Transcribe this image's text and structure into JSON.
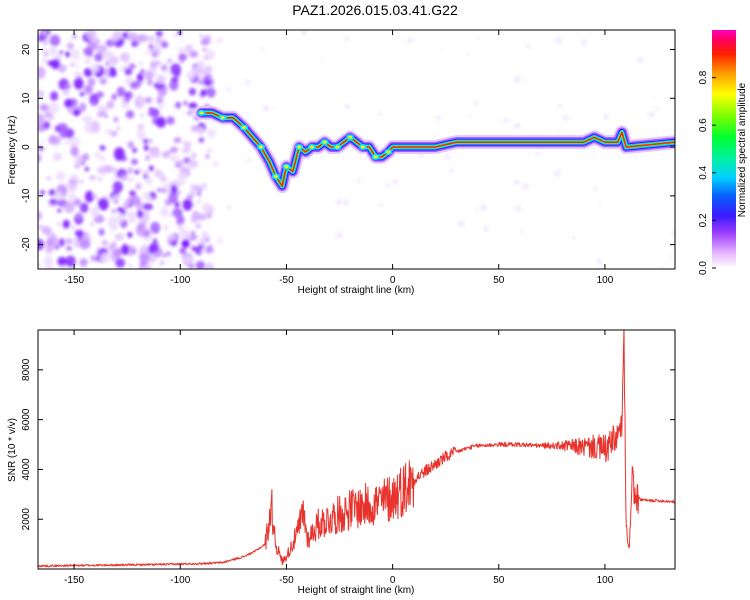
{
  "title": "PAZ1.2026.015.03.41.G22",
  "colors": {
    "frame": "#000000",
    "snr_line": "#e8322c"
  },
  "chart_data": [
    {
      "type": "heatmap",
      "name": "spectrogram",
      "title": "PAZ1.2026.015.03.41.G22",
      "xlabel": "Height of straight line (km)",
      "ylabel": "Frequency (Hz)",
      "xlim": [
        -167,
        133
      ],
      "ylim": [
        -25,
        24
      ],
      "xticks": [
        -150,
        -100,
        -50,
        0,
        50,
        100
      ],
      "yticks": [
        -20,
        -10,
        0,
        10,
        20
      ],
      "ridge": {
        "x": [
          -90,
          -85,
          -80,
          -75,
          -70,
          -66,
          -62,
          -58,
          -55,
          -52,
          -50,
          -47,
          -44,
          -41,
          -38,
          -35,
          -32,
          -29,
          -26,
          -23,
          -20,
          -17,
          -14,
          -11,
          -8,
          -5,
          -2,
          0,
          10,
          20,
          30,
          50,
          75,
          80,
          85,
          90,
          95,
          100,
          103,
          106,
          108,
          110,
          133
        ],
        "freq": [
          7,
          7,
          6,
          6,
          4,
          2,
          0,
          -3,
          -6,
          -8,
          -4,
          -5,
          0,
          -1,
          0,
          0,
          1,
          0,
          0,
          1,
          2,
          1,
          0,
          0,
          -2,
          -2,
          -1,
          0,
          0,
          0,
          1,
          1,
          1,
          1,
          1,
          1,
          2,
          1,
          1,
          1,
          3,
          0,
          1
        ]
      },
      "colorbar": {
        "label": "Normalized spectral amplitude",
        "range": [
          0,
          1
        ],
        "ticks": [
          "0.0",
          "0.2",
          "0.4",
          "0.6",
          "0.8"
        ]
      }
    },
    {
      "type": "line",
      "name": "snr",
      "xlabel": "Height of straight line (km)",
      "ylabel": "SNR (10 * v/v)",
      "xlim": [
        -167,
        133
      ],
      "ylim": [
        0,
        9600
      ],
      "xticks": [
        -150,
        -100,
        -50,
        0,
        50,
        100
      ],
      "yticks": [
        2000,
        4000,
        6000,
        8000
      ],
      "series": [
        {
          "name": "SNR",
          "x": [
            -167,
            -150,
            -130,
            -110,
            -100,
            -90,
            -80,
            -75,
            -70,
            -65,
            -60,
            -57,
            -55,
            -52,
            -50,
            -45,
            -42,
            -40,
            -35,
            -30,
            -25,
            -20,
            -15,
            -10,
            -5,
            0,
            5,
            10,
            15,
            20,
            25,
            30,
            35,
            40,
            50,
            60,
            70,
            80,
            90,
            95,
            100,
            103,
            106,
            108,
            109,
            110,
            111,
            112,
            113,
            114,
            116,
            120,
            125,
            133
          ],
          "y": [
            120,
            140,
            160,
            180,
            200,
            220,
            260,
            380,
            500,
            700,
            1000,
            2500,
            1000,
            300,
            500,
            1400,
            2300,
            1200,
            1800,
            2000,
            2200,
            2400,
            2500,
            2600,
            2700,
            2900,
            3200,
            3600,
            3900,
            4200,
            4500,
            4700,
            4850,
            4950,
            5000,
            5000,
            4950,
            4950,
            4900,
            4900,
            4800,
            5000,
            5300,
            5800,
            9200,
            1500,
            400,
            2200,
            4000,
            2800,
            2800,
            2750,
            2750,
            2700
          ]
        }
      ]
    }
  ]
}
